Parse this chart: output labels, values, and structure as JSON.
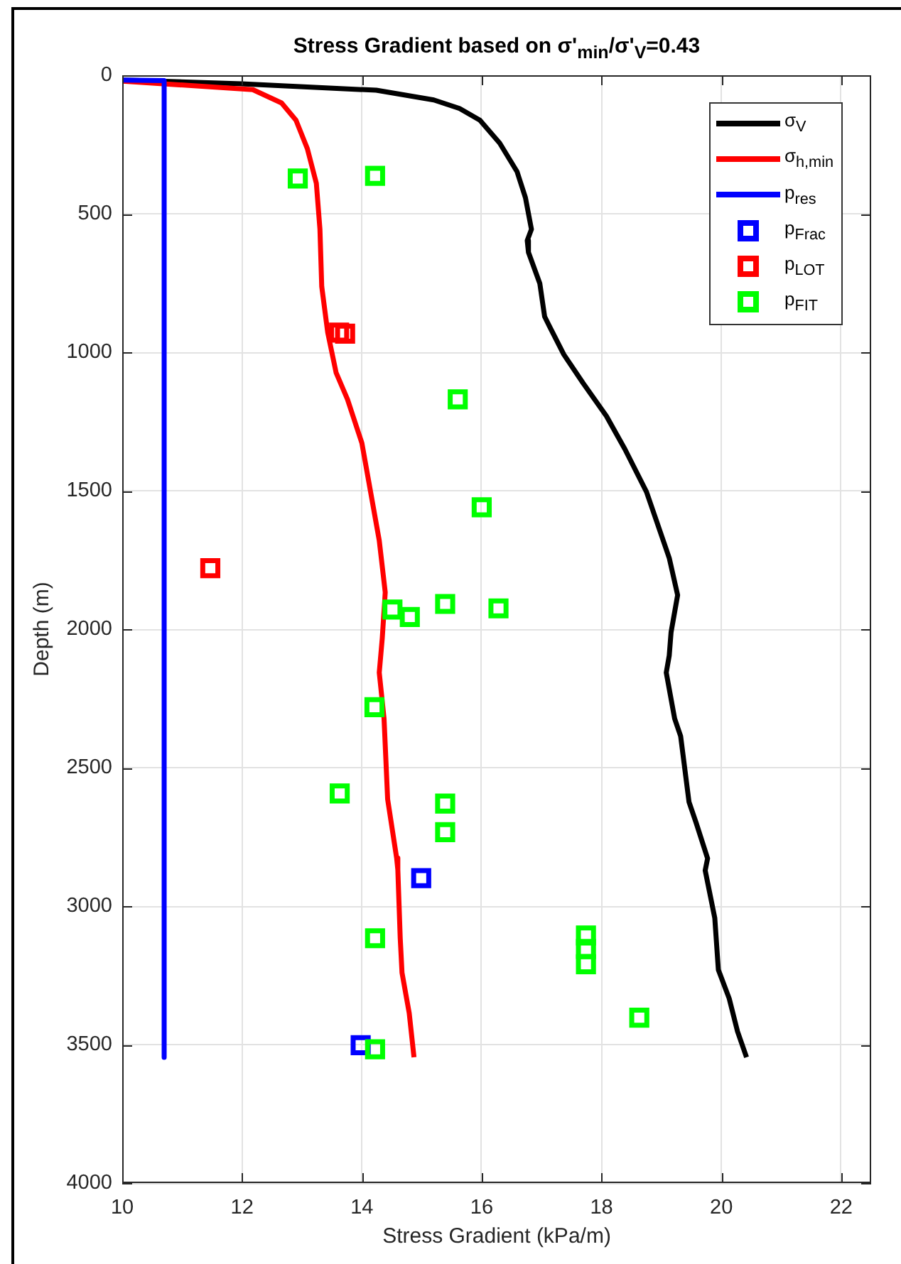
{
  "chart_data": {
    "type": "line",
    "title": "Stress Gradient based on σ'$_{min}$/σ'$_{V}$=0.43",
    "xlabel": "Stress Gradient (kPa/m)",
    "ylabel": "Depth (m)",
    "xlim": [
      10,
      22.5
    ],
    "xticks": [
      10,
      12,
      14,
      16,
      18,
      20,
      22
    ],
    "ylim": [
      4000,
      0
    ],
    "yticks": [
      0,
      500,
      1000,
      1500,
      2000,
      2500,
      3000,
      3500,
      4000
    ],
    "grid": true,
    "legend": "top right",
    "series": [
      {
        "name": "σ$_{V}$",
        "color": "#000000",
        "x": [
          10,
          11.99,
          14.24,
          15.2,
          15.63,
          15.97,
          16.3,
          16.59,
          16.73,
          16.83,
          16.76,
          16.78,
          16.97,
          17.05,
          17.13,
          17.37,
          17.69,
          18.08,
          18.39,
          18.75,
          19.13,
          19.27,
          19.16,
          19.13,
          19.08,
          19.22,
          19.32,
          19.46,
          19.58,
          19.77,
          19.73,
          19.89,
          19.95,
          20.13,
          20.27,
          20.42
        ],
        "values": [
          17,
          31,
          54,
          89,
          120,
          162,
          245,
          348,
          442,
          556,
          597,
          639,
          752,
          871,
          906,
          1008,
          1111,
          1230,
          1350,
          1504,
          1743,
          1877,
          2012,
          2095,
          2157,
          2323,
          2386,
          2624,
          2700,
          2828,
          2871,
          3043,
          3230,
          3333,
          3453,
          3546
        ]
      },
      {
        "name": "σ$_{h,min}$",
        "color": "#ff0000",
        "x": [
          10,
          12.18,
          12.66,
          12.9,
          13.09,
          13.24,
          13.3,
          13.33,
          13.43,
          13.57,
          13.76,
          14.0,
          14.29,
          14.39,
          14.34,
          14.29,
          14.37,
          14.43,
          14.58,
          14.6,
          14.64,
          14.67,
          14.79,
          14.87
        ],
        "values": [
          21,
          52,
          100,
          162,
          265,
          390,
          556,
          763,
          929,
          1074,
          1170,
          1328,
          1680,
          1867,
          2033,
          2157,
          2323,
          2614,
          2826,
          2868,
          3116,
          3241,
          3386,
          3546
        ]
      },
      {
        "name": "p$_{res}$",
        "color": "#0000ff",
        "x": [
          10,
          10.7,
          10.7
        ],
        "values": [
          17,
          19,
          3546
        ]
      },
      {
        "name": "p$_{Frac}$",
        "type": "scatter",
        "marker": "square",
        "color": "#0000ff",
        "x": [
          14.99,
          13.98
        ],
        "values": [
          2899,
          3502
        ]
      },
      {
        "name": "p$_{LOT}$",
        "type": "scatter",
        "marker": "square",
        "color": "#ff0000",
        "x": [
          13.62,
          13.72,
          11.47
        ],
        "values": [
          929,
          933,
          1780
        ]
      },
      {
        "name": "p$_{FIT}$",
        "type": "scatter",
        "marker": "square",
        "color": "#00ff00",
        "x": [
          12.93,
          14.22,
          15.6,
          16.0,
          14.51,
          14.8,
          15.39,
          16.28,
          14.21,
          13.63,
          15.39,
          15.39,
          14.22,
          17.74,
          17.74,
          17.74,
          18.63,
          14.22
        ],
        "values": [
          373,
          363,
          1170,
          1560,
          1929,
          1956,
          1909,
          1925,
          2282,
          2593,
          2630,
          2733,
          3116,
          3106,
          3155,
          3210,
          3403,
          3517
        ]
      }
    ]
  }
}
